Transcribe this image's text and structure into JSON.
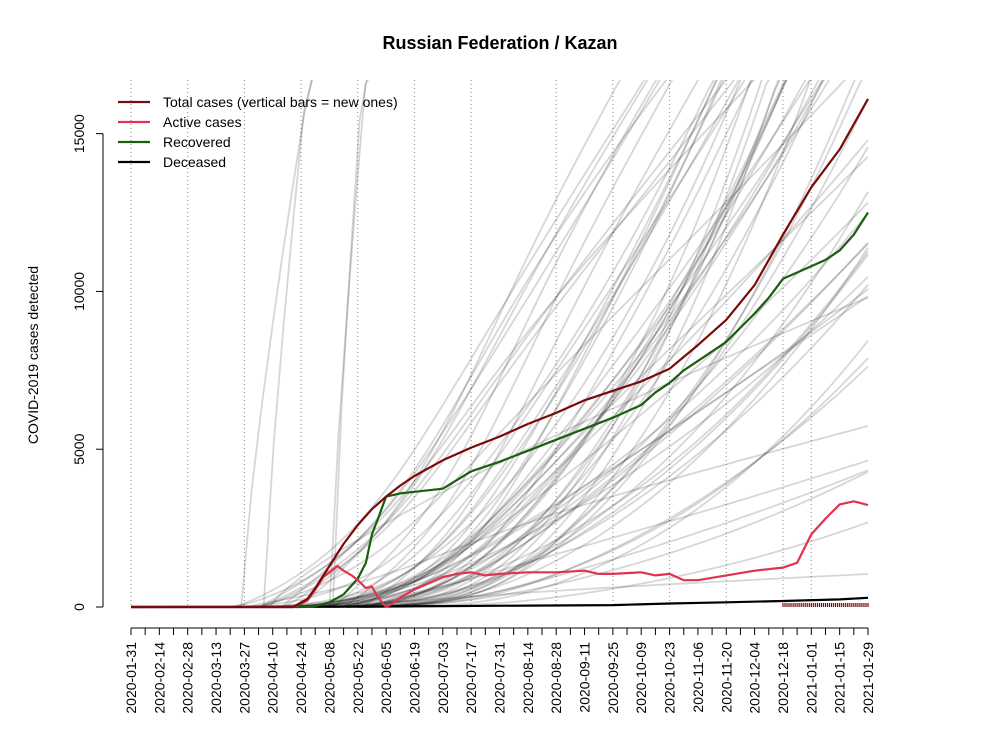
{
  "chart_data": {
    "type": "line",
    "title": "Russian Federation / Kazan",
    "xlabel": "",
    "ylabel": "COVID-2019 cases detected",
    "xlim": [
      "2020-01-31",
      "2021-01-29"
    ],
    "ylim": [
      0,
      16000
    ],
    "y_ticks": [
      0,
      5000,
      10000,
      15000
    ],
    "y_tick_labels": [
      "0",
      "5000",
      "10000",
      "15000"
    ],
    "x_tick_labels": [
      "2020-01-31",
      "2020-02-14",
      "2020-02-28",
      "2020-03-13",
      "2020-03-27",
      "2020-04-10",
      "2020-04-24",
      "2020-05-08",
      "2020-05-22",
      "2020-06-05",
      "2020-06-19",
      "2020-07-03",
      "2020-07-17",
      "2020-07-31",
      "2020-08-14",
      "2020-08-28",
      "2020-09-11",
      "2020-09-25",
      "2020-10-09",
      "2020-10-23",
      "2020-11-06",
      "2020-11-20",
      "2020-12-04",
      "2020-12-18",
      "2021-01-01",
      "2021-01-15",
      "2021-01-29"
    ],
    "grid_dates": [
      "2020-01-31",
      "2020-02-28",
      "2020-03-27",
      "2020-04-24",
      "2020-05-22",
      "2020-06-19",
      "2020-07-17",
      "2020-08-28",
      "2020-09-25",
      "2020-10-23",
      "2020-11-20",
      "2020-12-18",
      "2021-01-01"
    ],
    "grid": "vertical dotted",
    "legend_position": "top-left",
    "legend": [
      {
        "label": "Total cases (vertical bars = new ones)",
        "color": "#7a0a0a"
      },
      {
        "label": "Active cases",
        "color": "#e0334f"
      },
      {
        "label": "Recovered",
        "color": "#1a5e0f"
      },
      {
        "label": "Deceased",
        "color": "#000000"
      }
    ],
    "series": [
      {
        "name": "Total cases (vertical bars = new ones)",
        "color": "#7a0a0a",
        "x": [
          "2020-01-31",
          "2020-04-20",
          "2020-04-27",
          "2020-05-01",
          "2020-05-08",
          "2020-05-15",
          "2020-05-22",
          "2020-05-29",
          "2020-06-05",
          "2020-06-12",
          "2020-06-19",
          "2020-07-03",
          "2020-07-17",
          "2020-07-31",
          "2020-08-14",
          "2020-08-28",
          "2020-09-11",
          "2020-09-25",
          "2020-10-09",
          "2020-10-23",
          "2020-11-06",
          "2020-11-20",
          "2020-12-04",
          "2020-12-18",
          "2021-01-01",
          "2021-01-15",
          "2021-01-29"
        ],
        "y": [
          0,
          0,
          250,
          600,
          1300,
          2000,
          2600,
          3100,
          3500,
          3850,
          4150,
          4650,
          5050,
          5400,
          5800,
          6150,
          6550,
          6850,
          7150,
          7550,
          8300,
          9100,
          10200,
          11800,
          13300,
          14500,
          16100
        ]
      },
      {
        "name": "Active cases",
        "color": "#e0334f",
        "x": [
          "2020-01-31",
          "2020-04-20",
          "2020-04-27",
          "2020-05-01",
          "2020-05-05",
          "2020-05-08",
          "2020-05-12",
          "2020-05-15",
          "2020-05-19",
          "2020-05-22",
          "2020-05-26",
          "2020-05-29",
          "2020-06-01",
          "2020-06-05",
          "2020-06-08",
          "2020-06-12",
          "2020-06-19",
          "2020-06-26",
          "2020-07-03",
          "2020-07-10",
          "2020-07-17",
          "2020-07-24",
          "2020-07-31",
          "2020-08-14",
          "2020-08-28",
          "2020-09-11",
          "2020-09-18",
          "2020-09-25",
          "2020-10-09",
          "2020-10-16",
          "2020-10-23",
          "2020-10-30",
          "2020-11-06",
          "2020-11-20",
          "2020-12-04",
          "2020-12-18",
          "2020-12-25",
          "2021-01-01",
          "2021-01-08",
          "2021-01-15",
          "2021-01-22",
          "2021-01-29"
        ],
        "y": [
          0,
          0,
          200,
          550,
          950,
          1100,
          1300,
          1150,
          1000,
          850,
          600,
          650,
          300,
          0,
          100,
          300,
          550,
          750,
          950,
          1050,
          1100,
          1000,
          1050,
          1100,
          1100,
          1150,
          1050,
          1050,
          1100,
          1000,
          1050,
          850,
          850,
          1000,
          1150,
          1250,
          1400,
          2300,
          2800,
          3250,
          3350,
          3230
        ]
      },
      {
        "name": "Recovered",
        "color": "#1a5e0f",
        "x": [
          "2020-01-31",
          "2020-04-24",
          "2020-05-01",
          "2020-05-08",
          "2020-05-15",
          "2020-05-22",
          "2020-05-26",
          "2020-05-29",
          "2020-06-01",
          "2020-06-05",
          "2020-06-12",
          "2020-06-19",
          "2020-07-03",
          "2020-07-17",
          "2020-07-31",
          "2020-08-14",
          "2020-08-28",
          "2020-09-11",
          "2020-09-25",
          "2020-10-09",
          "2020-10-16",
          "2020-10-23",
          "2020-10-30",
          "2020-11-06",
          "2020-11-20",
          "2020-12-04",
          "2020-12-11",
          "2020-12-18",
          "2021-01-01",
          "2021-01-08",
          "2021-01-15",
          "2021-01-22",
          "2021-01-29"
        ],
        "y": [
          0,
          0,
          30,
          150,
          400,
          900,
          1400,
          2300,
          2800,
          3500,
          3600,
          3650,
          3750,
          4300,
          4600,
          4950,
          5300,
          5650,
          6000,
          6400,
          6800,
          7100,
          7500,
          7800,
          8400,
          9300,
          9800,
          10400,
          10800,
          11000,
          11300,
          11800,
          12500
        ]
      },
      {
        "name": "Deceased",
        "color": "#000000",
        "x": [
          "2020-01-31",
          "2020-05-01",
          "2020-06-05",
          "2020-07-03",
          "2020-08-14",
          "2020-09-25",
          "2020-10-23",
          "2020-11-20",
          "2020-12-18",
          "2021-01-15",
          "2021-01-29"
        ],
        "y": [
          0,
          10,
          20,
          30,
          45,
          60,
          110,
          150,
          190,
          240,
          290
        ]
      }
    ]
  }
}
